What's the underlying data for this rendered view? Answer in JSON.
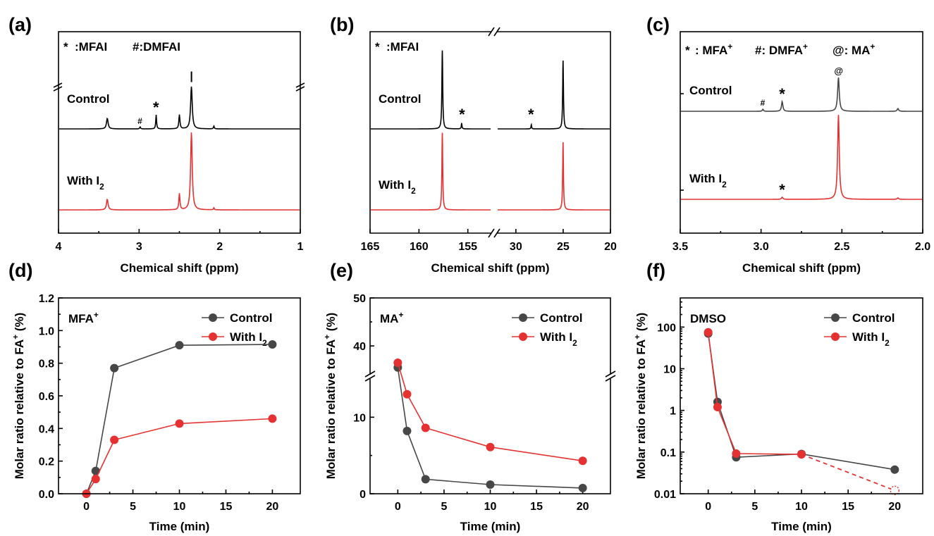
{
  "colors": {
    "control": "#474747",
    "with_i2": "#e53131",
    "nmr_control": "#000000",
    "nmr_with_i2": "#e53131"
  },
  "chart_data": [
    {
      "id": "a",
      "type": "line",
      "panel_label": "(a)",
      "xlabel": "Chemical shift (ppm)",
      "ylabel": "",
      "xlim": [
        4,
        1
      ],
      "x_ticks": [
        "4",
        "3",
        "2",
        "1"
      ],
      "annotation": {
        "part1": "*",
        "part2": ":MFAI",
        "part3": "#:DMFAI"
      },
      "series": [
        {
          "name": "Control",
          "peaks_ppm": [
            3.4,
            2.99,
            2.79,
            2.5,
            2.35,
            2.07
          ],
          "peak_marks": [
            "#",
            "*",
            "|"
          ]
        },
        {
          "name": "With I",
          "name_sub": "2",
          "peaks_ppm": [
            3.4,
            2.5,
            2.35,
            2.07
          ]
        }
      ]
    },
    {
      "id": "b",
      "type": "line",
      "panel_label": "(b)",
      "xlabel": "Chemical shift (ppm)",
      "ylabel": "",
      "x_ticks": [
        "165",
        "160",
        "155",
        "30",
        "25",
        "20"
      ],
      "annotation": {
        "part1": "*",
        "part2": ":MFAI"
      },
      "series": [
        {
          "name": "Control",
          "peaks_ppm": [
            157.6,
            155.6,
            28.4,
            25.0
          ],
          "peak_marks": [
            "*",
            "*"
          ]
        },
        {
          "name": "With I",
          "name_sub": "2",
          "peaks_ppm": [
            157.6,
            25.0
          ]
        }
      ]
    },
    {
      "id": "c",
      "type": "line",
      "panel_label": "(c)",
      "xlabel": "Chemical shift (ppm)",
      "ylabel": "",
      "xlim": [
        3.5,
        2.0
      ],
      "x_ticks": [
        "3.5",
        "3.0",
        "2.5",
        "2.0"
      ],
      "annotation": {
        "a1": "*",
        "a2": ": MFA",
        "a2_sup": "+",
        "b1": "#: DMFA",
        "b1_sup": "+",
        "c1": "@: MA",
        "c1_sup": "+"
      },
      "series": [
        {
          "name": "Control",
          "peaks_ppm": [
            2.99,
            2.87,
            2.52,
            2.15
          ],
          "peak_marks": [
            "#",
            "*",
            "@"
          ]
        },
        {
          "name": "With I",
          "name_sub": "2",
          "peaks_ppm": [
            2.87,
            2.52,
            2.15
          ],
          "peak_marks": [
            "*"
          ]
        }
      ]
    },
    {
      "id": "d",
      "type": "line",
      "panel_label": "(d)",
      "xlabel": "Time (min)",
      "ylabel": "Molar ratio relative to FA",
      "ylabel_sup": "+",
      "ylabel_tail": " (%)",
      "xlim": [
        -3,
        23
      ],
      "ylim": [
        0,
        1.2
      ],
      "x_ticks": [
        0,
        5,
        10,
        15,
        20
      ],
      "y_ticks": [
        "0.0",
        "0.2",
        "0.4",
        "0.6",
        "0.8",
        "1.0",
        "1.2"
      ],
      "inset": "MFA",
      "inset_sup": "+",
      "legend": "top-right",
      "series": [
        {
          "name": "Control",
          "x": [
            0,
            1,
            3,
            10,
            20
          ],
          "y": [
            0.0,
            0.14,
            0.77,
            0.91,
            0.915
          ]
        },
        {
          "name": "With I",
          "name_sub": "2",
          "x": [
            0,
            1,
            3,
            10,
            20
          ],
          "y": [
            0.0,
            0.09,
            0.33,
            0.43,
            0.46
          ]
        }
      ]
    },
    {
      "id": "e",
      "type": "line",
      "panel_label": "(e)",
      "xlabel": "Time (min)",
      "ylabel": "Molar ratio relative to FA",
      "ylabel_sup": "+",
      "ylabel_tail": " (%)",
      "xlim": [
        -3,
        23
      ],
      "ylim_lower": [
        0,
        15
      ],
      "ylim_upper": [
        34,
        50
      ],
      "broken_y": true,
      "x_ticks": [
        0,
        5,
        10,
        15,
        20
      ],
      "y_ticks": [
        "0",
        "10",
        "40",
        "50"
      ],
      "inset": "MA",
      "inset_sup": "+",
      "legend": "top-right",
      "series": [
        {
          "name": "Control",
          "x": [
            0,
            1,
            3,
            10,
            20
          ],
          "y": [
            35.5,
            8.2,
            1.9,
            1.2,
            0.75
          ]
        },
        {
          "name": "With I",
          "name_sub": "2",
          "x": [
            0,
            1,
            3,
            10,
            20
          ],
          "y": [
            36.5,
            13.0,
            8.6,
            6.1,
            4.3
          ]
        }
      ]
    },
    {
      "id": "f",
      "type": "line",
      "panel_label": "(f)",
      "xlabel": "Time (min)",
      "ylabel": "Molar ratio relative to FA",
      "ylabel_sup": "+",
      "ylabel_tail": " (%)",
      "xlim": [
        -3,
        23
      ],
      "ylim": [
        0.01,
        500
      ],
      "yscale": "log",
      "x_ticks": [
        0,
        5,
        10,
        15,
        20
      ],
      "y_ticks": [
        "0.01",
        "0.1",
        "1",
        "10",
        "100"
      ],
      "inset": "DMSO",
      "legend": "top-right",
      "series": [
        {
          "name": "Control",
          "x": [
            0,
            1,
            3,
            10,
            20
          ],
          "y": [
            70,
            1.6,
            0.075,
            0.09,
            0.038
          ]
        },
        {
          "name": "With I",
          "name_sub": "2",
          "x": [
            0,
            1,
            3,
            10,
            20
          ],
          "y": [
            75,
            1.2,
            0.092,
            0.088,
            0.012
          ],
          "last_point_dashed_open": true
        }
      ]
    }
  ]
}
